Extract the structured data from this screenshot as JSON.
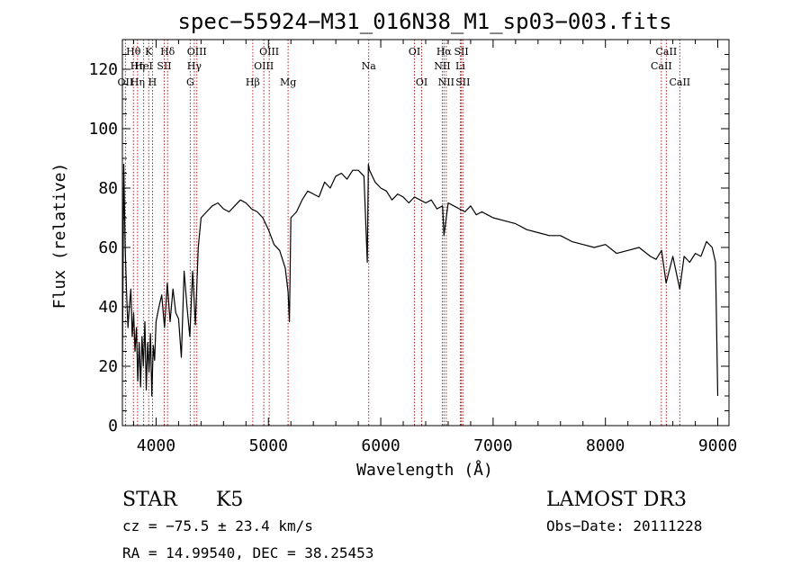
{
  "chart_data": {
    "type": "line",
    "title": "spec−55924−M31_016N38_M1_sp03−003.fits",
    "xlabel": "Wavelength (Å)",
    "ylabel": "Flux (relative)",
    "xlim": [
      3700,
      9100
    ],
    "ylim": [
      0,
      130
    ],
    "grid": false,
    "legend": "none",
    "x_ticks": [
      4000,
      5000,
      6000,
      7000,
      8000,
      9000
    ],
    "x_tick_labels": [
      "4000",
      "5000",
      "6000",
      "7000",
      "8000",
      "9000"
    ],
    "y_ticks": [
      0,
      20,
      40,
      60,
      80,
      100,
      120
    ],
    "y_tick_labels": [
      "0",
      "20",
      "40",
      "60",
      "80",
      "100",
      "120"
    ],
    "series": [
      {
        "name": "spectrum",
        "color": "#000000",
        "x": [
          3700,
          3712,
          3725,
          3737,
          3750,
          3762,
          3775,
          3787,
          3800,
          3812,
          3825,
          3837,
          3850,
          3862,
          3875,
          3887,
          3900,
          3912,
          3925,
          3937,
          3950,
          3962,
          3975,
          3987,
          4000,
          4025,
          4050,
          4075,
          4100,
          4125,
          4150,
          4175,
          4200,
          4225,
          4250,
          4275,
          4300,
          4325,
          4350,
          4375,
          4400,
          4450,
          4500,
          4550,
          4600,
          4650,
          4700,
          4750,
          4800,
          4850,
          4900,
          4950,
          5000,
          5050,
          5100,
          5150,
          5175,
          5187,
          5200,
          5250,
          5300,
          5350,
          5400,
          5450,
          5500,
          5550,
          5600,
          5650,
          5700,
          5750,
          5800,
          5850,
          5880,
          5890,
          5900,
          5950,
          6000,
          6050,
          6100,
          6150,
          6200,
          6250,
          6300,
          6350,
          6400,
          6450,
          6500,
          6550,
          6563,
          6600,
          6650,
          6700,
          6750,
          6800,
          6850,
          6900,
          6950,
          7000,
          7100,
          7200,
          7300,
          7400,
          7500,
          7600,
          7700,
          7800,
          7900,
          8000,
          8100,
          8200,
          8300,
          8400,
          8450,
          8500,
          8540,
          8600,
          8662,
          8700,
          8750,
          8800,
          8850,
          8900,
          8950,
          8980,
          9000
        ],
        "values": [
          20,
          88,
          60,
          45,
          33,
          40,
          46,
          30,
          38,
          25,
          33,
          15,
          28,
          13,
          30,
          20,
          35,
          12,
          28,
          18,
          31,
          10,
          27,
          22,
          35,
          40,
          44,
          33,
          48,
          35,
          46,
          38,
          36,
          23,
          52,
          40,
          30,
          52,
          34,
          60,
          70,
          72,
          74,
          75,
          73,
          72,
          74,
          76,
          75,
          73,
          72,
          70,
          66,
          61,
          59,
          53,
          45,
          35,
          70,
          72,
          76,
          79,
          78,
          77,
          82,
          80,
          84,
          85,
          83,
          86,
          86,
          84,
          55,
          88,
          86,
          82,
          80,
          79,
          76,
          78,
          77,
          75,
          77,
          76,
          75,
          76,
          73,
          74,
          64,
          75,
          74,
          73,
          72,
          74,
          71,
          72,
          71,
          70,
          69,
          68,
          66,
          65,
          64,
          64,
          62,
          61,
          60,
          61,
          58,
          59,
          60,
          57,
          56,
          59,
          48,
          57,
          46,
          57,
          55,
          58,
          57,
          62,
          60,
          55,
          10
        ]
      }
    ],
    "line_markers": [
      {
        "label": "Hθ",
        "x": 3798,
        "row": 1
      },
      {
        "label": "K",
        "x": 3934,
        "row": 1
      },
      {
        "label": "Hδ",
        "x": 4102,
        "row": 1
      },
      {
        "label": "OIII",
        "x": 4363,
        "row": 1
      },
      {
        "label": "OIII",
        "x": 5007,
        "row": 1
      },
      {
        "label": "OI",
        "x": 6300,
        "row": 1
      },
      {
        "label": "Hα",
        "x": 6563,
        "row": 1
      },
      {
        "label": "SII",
        "x": 6717,
        "row": 1
      },
      {
        "label": "CaII",
        "x": 8542,
        "row": 1
      },
      {
        "label": "Hη",
        "x": 3835,
        "row": 2
      },
      {
        "label": "HeI",
        "x": 3889,
        "row": 2
      },
      {
        "label": "SII",
        "x": 4072,
        "row": 2
      },
      {
        "label": "Hγ",
        "x": 4340,
        "row": 2
      },
      {
        "label": "OIII",
        "x": 4959,
        "row": 2
      },
      {
        "label": "Na",
        "x": 5893,
        "row": 2
      },
      {
        "label": "NII",
        "x": 6548,
        "row": 2
      },
      {
        "label": "Li",
        "x": 6708,
        "row": 2
      },
      {
        "label": "CaII",
        "x": 8498,
        "row": 2
      },
      {
        "label": "OII",
        "x": 3727,
        "row": 3
      },
      {
        "label": "Hη",
        "x": 3835,
        "row": 3
      },
      {
        "label": "H",
        "x": 3968,
        "row": 3
      },
      {
        "label": "G",
        "x": 4304,
        "row": 3
      },
      {
        "label": "Hβ",
        "x": 4861,
        "row": 3
      },
      {
        "label": "Mg",
        "x": 5175,
        "row": 3
      },
      {
        "label": "OI",
        "x": 6364,
        "row": 3
      },
      {
        "label": "NII",
        "x": 6583,
        "row": 3
      },
      {
        "label": "SII",
        "x": 6731,
        "row": 3
      },
      {
        "label": "CaII",
        "x": 8662,
        "row": 3
      }
    ]
  },
  "info": {
    "class": "STAR",
    "subclass": "K5",
    "survey": "LAMOST DR3",
    "cz": "cz = −75.5 ± 23.4 km/s",
    "obs_date": "Obs−Date: 20111228",
    "radec": "RA =  14.99540, DEC =  38.25453"
  },
  "colors": {
    "spectrum": "#000000",
    "marker_line": "#b22222",
    "axis": "#000000"
  }
}
